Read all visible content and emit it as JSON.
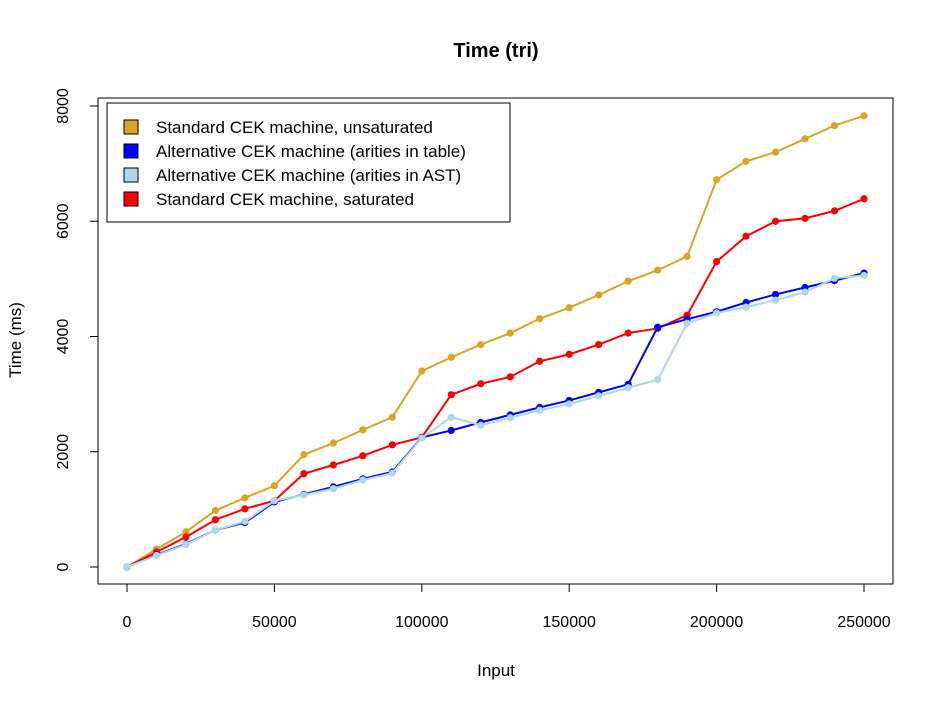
{
  "chart_data": {
    "type": "line",
    "title": "Time (tri)",
    "xlabel": "Input",
    "ylabel": "Time (ms)",
    "xlim": [
      0,
      250000
    ],
    "ylim": [
      0,
      8000
    ],
    "x_ticks": [
      0,
      50000,
      100000,
      150000,
      200000,
      250000
    ],
    "x_tick_labels": [
      "0",
      "50000",
      "100000",
      "150000",
      "200000",
      "250000"
    ],
    "y_ticks": [
      0,
      2000,
      4000,
      6000,
      8000
    ],
    "y_tick_labels": [
      "0",
      "2000",
      "4000",
      "6000",
      "8000"
    ],
    "grid": false,
    "legend_position": "top-left",
    "x": [
      0,
      10000,
      20000,
      30000,
      40000,
      50000,
      60000,
      70000,
      80000,
      90000,
      100000,
      110000,
      120000,
      130000,
      140000,
      150000,
      160000,
      170000,
      180000,
      190000,
      200000,
      210000,
      220000,
      230000,
      240000,
      250000
    ],
    "series": [
      {
        "name": "Standard CEK machine, unsaturated",
        "color": "#DAA520",
        "values": [
          0,
          310,
          610,
          980,
          1200,
          1410,
          1950,
          2150,
          2380,
          2600,
          3400,
          3640,
          3860,
          4060,
          4310,
          4500,
          4720,
          4960,
          5150,
          5390,
          6720,
          7040,
          7200,
          7430,
          7660,
          7830
        ]
      },
      {
        "name": "Standard CEK machine, saturated",
        "color": "#FF0000",
        "values": [
          0,
          260,
          520,
          820,
          1010,
          1150,
          1620,
          1770,
          1930,
          2120,
          2250,
          2990,
          3180,
          3300,
          3570,
          3690,
          3860,
          4060,
          4140,
          4370,
          5300,
          5740,
          6000,
          6050,
          6180,
          6390
        ]
      },
      {
        "name": "Alternative CEK machine (arities in table)",
        "color": "#0000FF",
        "values": [
          0,
          210,
          400,
          640,
          770,
          1130,
          1260,
          1390,
          1530,
          1650,
          2250,
          2370,
          2510,
          2640,
          2770,
          2890,
          3030,
          3170,
          4160,
          4300,
          4430,
          4590,
          4730,
          4850,
          4970,
          5100
        ]
      },
      {
        "name": "Alternative CEK machine (arities in AST)",
        "color": "#ADD8E6",
        "values": [
          0,
          200,
          390,
          640,
          790,
          1150,
          1250,
          1360,
          1510,
          1630,
          2240,
          2600,
          2460,
          2590,
          2720,
          2830,
          2970,
          3110,
          3250,
          4230,
          4410,
          4510,
          4630,
          4770,
          5010,
          5060
        ]
      }
    ],
    "legend_order": [
      0,
      2,
      3,
      1
    ]
  }
}
